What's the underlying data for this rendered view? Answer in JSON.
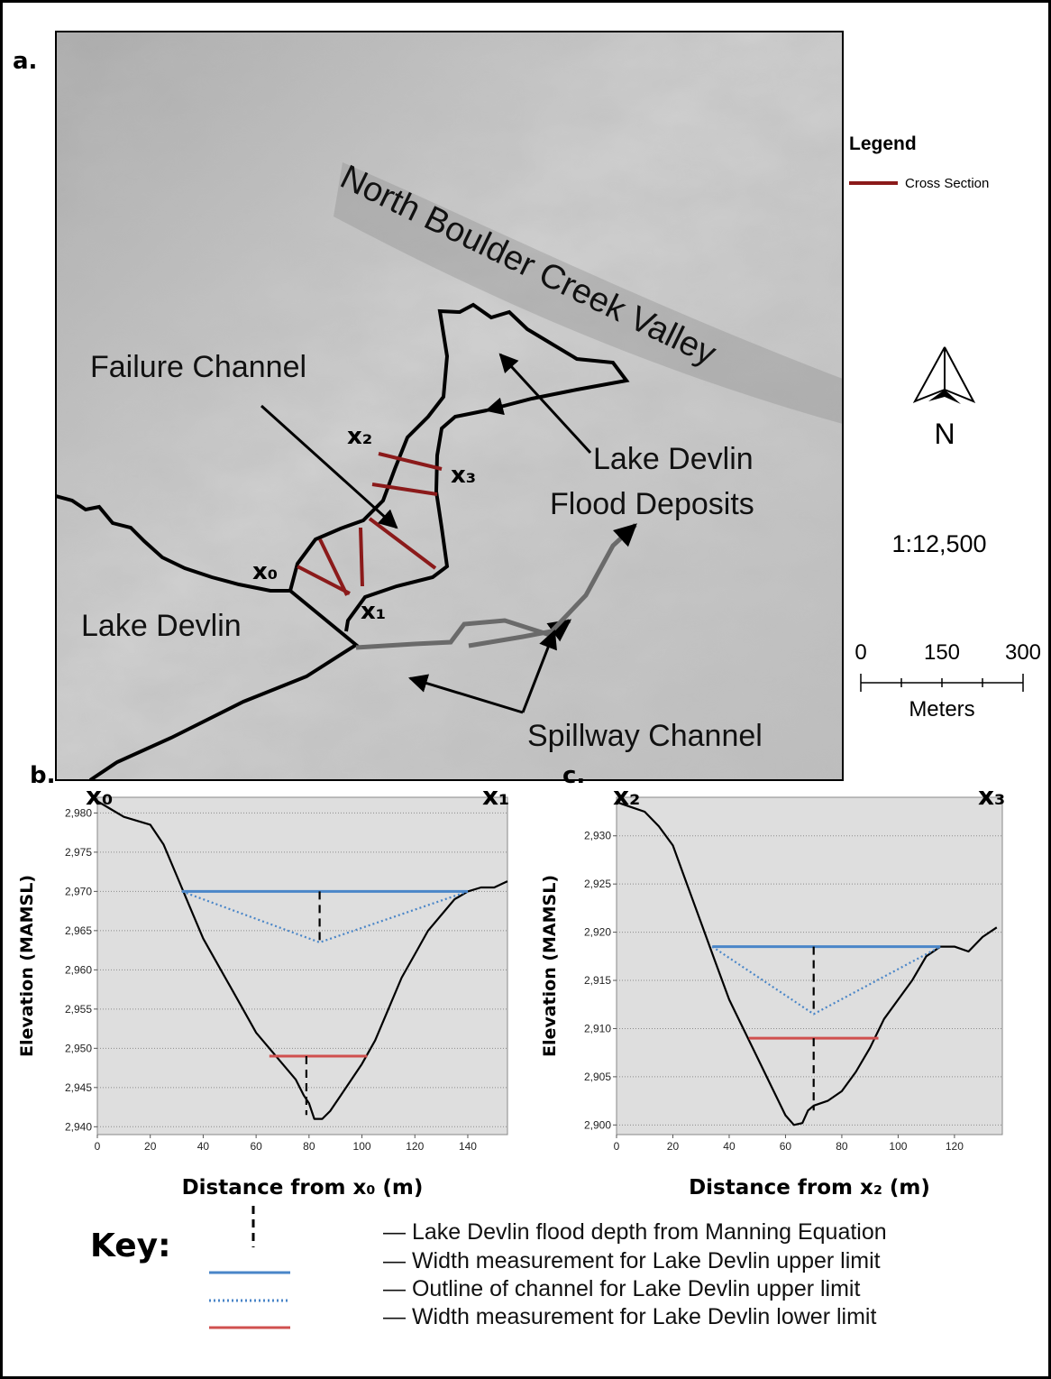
{
  "map": {
    "panel_label": "a.",
    "valley_label": "North Boulder Creek Valley",
    "failure_label": "Failure Channel",
    "deposits_label": [
      "Lake Devlin",
      "Flood Deposits"
    ],
    "lake_label": "Lake Devlin",
    "spillway_label": "Spillway Channel",
    "section_points": [
      "x₀",
      "x₁",
      "x₂",
      "x₃"
    ],
    "legend_title": "Legend",
    "legend_item": "Cross Section",
    "north": "N",
    "scale_ratio": "1:12,500",
    "scale_ticks": [
      "0",
      "150",
      "300"
    ],
    "scale_unit": "Meters"
  },
  "chart_data": [
    {
      "type": "line",
      "panel_label": "b.",
      "corner_labels": [
        "x₀",
        "x₁"
      ],
      "x_label": "Distance from x₀ (m)",
      "y_label": "Elevation (MAMSL)",
      "xlim": [
        0,
        155
      ],
      "xticks": [
        0,
        20,
        40,
        60,
        80,
        100,
        120,
        140
      ],
      "ylim": [
        2939,
        2982
      ],
      "yticks": [
        {
          "value": 2940,
          "label": "2,940"
        },
        {
          "value": 2945,
          "label": "2,945"
        },
        {
          "value": 2950,
          "label": "2,950"
        },
        {
          "value": 2955,
          "label": "2,955"
        },
        {
          "value": 2960,
          "label": "2,960"
        },
        {
          "value": 2965,
          "label": "2,965"
        },
        {
          "value": 2970,
          "label": "2,970"
        },
        {
          "value": 2975,
          "label": "2,975"
        },
        {
          "value": 2980,
          "label": "2,980"
        }
      ],
      "grid": true,
      "series": [
        {
          "color": "#000000",
          "dash": "solid",
          "x": [
            0,
            5,
            10,
            15,
            20,
            25,
            30,
            35,
            40,
            45,
            50,
            55,
            60,
            65,
            70,
            75,
            78,
            80,
            82,
            85,
            88,
            92,
            96,
            100,
            105,
            110,
            115,
            120,
            125,
            130,
            135,
            140,
            145,
            150,
            155
          ],
          "values": [
            2981.5,
            2980.5,
            2979.5,
            2979,
            2978.5,
            2976,
            2972,
            2968,
            2964,
            2961,
            2958,
            2955,
            2952,
            2950,
            2948,
            2946,
            2944,
            2943,
            2941,
            2941,
            2942,
            2944,
            2946,
            2948,
            2951,
            2955,
            2959,
            2962,
            2965,
            2967,
            2969,
            2970,
            2970.5,
            2970.5,
            2971.3
          ]
        },
        {
          "color": "#4a86c8",
          "dash": "solid",
          "x": [
            32,
            140
          ],
          "values": [
            2970,
            2970
          ]
        },
        {
          "color": "#4a86c8",
          "dash": "dotted",
          "x": [
            32,
            84,
            140
          ],
          "values": [
            2970,
            2963.5,
            2970
          ]
        },
        {
          "color": "#000000",
          "dash": "dashed",
          "x": [
            84,
            84
          ],
          "values": [
            2970,
            2963.5
          ]
        },
        {
          "color": "#d0504f",
          "dash": "solid",
          "x": [
            65,
            102
          ],
          "values": [
            2949,
            2949
          ]
        },
        {
          "color": "#000000",
          "dash": "dashed",
          "x": [
            79,
            79
          ],
          "values": [
            2949,
            2941.5
          ]
        }
      ]
    },
    {
      "type": "line",
      "panel_label": "c.",
      "corner_labels": [
        "x₂",
        "x₃"
      ],
      "x_label": "Distance from x₂ (m)",
      "y_label": "Elevation (MAMSL)",
      "xlim": [
        0,
        137
      ],
      "xticks": [
        0,
        20,
        40,
        60,
        80,
        100,
        120
      ],
      "ylim": [
        2899,
        2934
      ],
      "yticks": [
        {
          "value": 2900,
          "label": "2,900"
        },
        {
          "value": 2905,
          "label": "2,905"
        },
        {
          "value": 2910,
          "label": "2,910"
        },
        {
          "value": 2915,
          "label": "2,915"
        },
        {
          "value": 2920,
          "label": "2,920"
        },
        {
          "value": 2925,
          "label": "2,925"
        },
        {
          "value": 2930,
          "label": "2,930"
        }
      ],
      "grid": true,
      "series": [
        {
          "color": "#000000",
          "dash": "solid",
          "x": [
            0,
            5,
            10,
            15,
            20,
            25,
            30,
            35,
            40,
            45,
            50,
            55,
            60,
            63,
            66,
            68,
            70,
            75,
            80,
            85,
            90,
            95,
            100,
            105,
            110,
            115,
            120,
            125,
            130,
            135
          ],
          "values": [
            2933.5,
            2933,
            2932.5,
            2931,
            2929,
            2925,
            2921,
            2917,
            2913,
            2910,
            2907,
            2904,
            2901,
            2900,
            2900.2,
            2901.5,
            2902,
            2902.5,
            2903.5,
            2905.5,
            2908,
            2911,
            2913,
            2915,
            2917.5,
            2918.5,
            2918.5,
            2918,
            2919.5,
            2920.5
          ]
        },
        {
          "color": "#4a86c8",
          "dash": "solid",
          "x": [
            34,
            115
          ],
          "values": [
            2918.5,
            2918.5
          ]
        },
        {
          "color": "#4a86c8",
          "dash": "dotted",
          "x": [
            34,
            70,
            115
          ],
          "values": [
            2918.5,
            2911.5,
            2918.5
          ]
        },
        {
          "color": "#000000",
          "dash": "dashed",
          "x": [
            70,
            70
          ],
          "values": [
            2918.5,
            2911.5
          ]
        },
        {
          "color": "#d0504f",
          "dash": "solid",
          "x": [
            47,
            93
          ],
          "values": [
            2909,
            2909
          ]
        },
        {
          "color": "#000000",
          "dash": "dashed",
          "x": [
            70,
            70
          ],
          "values": [
            2909,
            2901.5
          ]
        }
      ]
    }
  ],
  "key": {
    "title": "Key:",
    "items": [
      "— Lake Devlin flood depth from Manning Equation",
      "— Width measurement for Lake Devlin upper limit",
      "— Outline of channel for Lake Devlin upper limit",
      "— Width measurement for Lake Devlin lower limit"
    ]
  }
}
